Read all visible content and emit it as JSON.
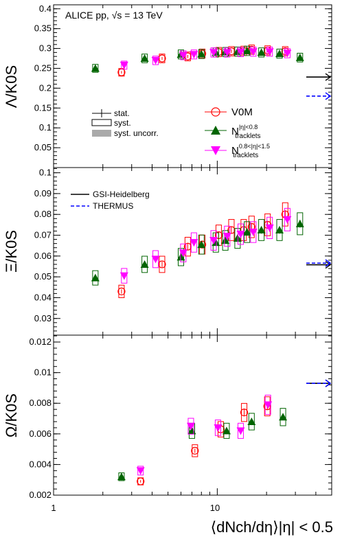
{
  "colors": {
    "V0M": "#ff0000",
    "tracklets": "#006400",
    "tracklets_outer": "#ff00ff",
    "gsi": "#000000",
    "thermus": "#0000ff"
  },
  "system_label": "ALICE pp, √s = 13 TeV",
  "xaxis": {
    "label": "⟨dNch/dη⟩|η| < 0.5",
    "ticks": [
      "1",
      "10"
    ],
    "xlim": [
      1,
      50
    ],
    "scale": "log"
  },
  "legend_markers": [
    {
      "series": "V0M",
      "label": "V0M"
    },
    {
      "series": "tracklets",
      "label": "N tracklets |η|<0.8"
    },
    {
      "series": "tracklets_outer",
      "label": "N tracklets 0.8<|η|<1.5"
    }
  ],
  "legend_models": [
    {
      "id": "gsi",
      "label": "GSI-Heidelberg"
    },
    {
      "id": "thermus",
      "label": "THERMUS"
    }
  ],
  "legend_uncert": [
    {
      "id": "stat",
      "label": "stat."
    },
    {
      "id": "syst",
      "label": "syst."
    },
    {
      "id": "uncorr",
      "label": "syst. uncorr."
    }
  ],
  "chart_data": [
    {
      "type": "scatter",
      "ylabel": "Λ/K0S",
      "ylim": [
        0.0,
        0.41
      ],
      "yticks": [
        "0.05",
        "0.1",
        "0.15",
        "0.2",
        "0.25",
        "0.3",
        "0.35",
        "0.4"
      ],
      "series": [
        {
          "name": "V0M",
          "x": [
            2.6,
            4.6,
            6.6,
            8.1,
            10.2,
            12.2,
            14.5,
            16.2,
            20.3,
            26.0
          ],
          "y": [
            0.24,
            0.275,
            0.28,
            0.287,
            0.291,
            0.293,
            0.294,
            0.297,
            0.295,
            0.293
          ]
        },
        {
          "name": "N tracklets |η|<0.8",
          "x": [
            1.8,
            3.6,
            6.0,
            8.0,
            9.8,
            11.2,
            13.3,
            15.2,
            18.6,
            24.0,
            32.0
          ],
          "y": [
            0.25,
            0.275,
            0.285,
            0.286,
            0.29,
            0.291,
            0.292,
            0.294,
            0.29,
            0.287,
            0.277
          ]
        },
        {
          "name": "N tracklets 0.8<|η|<1.5",
          "x": [
            2.7,
            4.2,
            6.2,
            7.2,
            9.5,
            11.5,
            13.9,
            16.6,
            20.9,
            26.8
          ],
          "y": [
            0.258,
            0.27,
            0.283,
            0.285,
            0.29,
            0.29,
            0.291,
            0.292,
            0.292,
            0.288
          ]
        }
      ],
      "models": [
        {
          "name": "GSI-Heidelberg",
          "y": 0.228
        },
        {
          "name": "THERMUS",
          "y": 0.18
        }
      ]
    },
    {
      "type": "scatter",
      "ylabel": "Ξ/K0S",
      "ylim": [
        0.022,
        0.1025
      ],
      "yticks": [
        "0.03",
        "0.04",
        "0.05",
        "0.06",
        "0.07",
        "0.08",
        "0.09",
        "0.1"
      ],
      "series": [
        {
          "name": "V0M",
          "x": [
            2.6,
            4.6,
            6.6,
            8.1,
            10.2,
            12.2,
            14.5,
            16.2,
            20.3,
            26.0
          ],
          "y": [
            0.043,
            0.056,
            0.0645,
            0.0655,
            0.07,
            0.0725,
            0.0725,
            0.074,
            0.075,
            0.08
          ]
        },
        {
          "name": "N tracklets |η|<0.8",
          "x": [
            1.8,
            3.6,
            6.0,
            8.0,
            9.8,
            11.2,
            13.3,
            15.2,
            18.6,
            24.0,
            32.0
          ],
          "y": [
            0.0495,
            0.056,
            0.0595,
            0.0655,
            0.0665,
            0.0675,
            0.0685,
            0.0715,
            0.0725,
            0.0725,
            0.0755
          ]
        },
        {
          "name": "N tracklets 0.8<|η|<1.5",
          "x": [
            2.7,
            4.2,
            6.2,
            7.2,
            9.5,
            11.5,
            13.9,
            16.6,
            20.9,
            26.8
          ],
          "y": [
            0.0505,
            0.0585,
            0.0615,
            0.0665,
            0.0675,
            0.0695,
            0.0705,
            0.0715,
            0.0735,
            0.0775
          ]
        }
      ],
      "models": [
        {
          "name": "GSI-Heidelberg",
          "y": 0.0558
        },
        {
          "name": "THERMUS",
          "y": 0.0566
        }
      ]
    },
    {
      "type": "scatter",
      "ylabel": "Ω/K0S",
      "xlabel": "⟨dNch/dη⟩|η| < 0.5",
      "ylim": [
        0.002,
        0.01245
      ],
      "yticks": [
        "0.002",
        "0.004",
        "0.006",
        "0.008",
        "0.01",
        "0.012"
      ],
      "series": [
        {
          "name": "V0M",
          "x": [
            3.4,
            7.3,
            10.5,
            14.6,
            20.2
          ],
          "y": [
            0.0029,
            0.0049,
            0.0063,
            0.0074,
            0.0078
          ]
        },
        {
          "name": "N tracklets |η|<0.8",
          "x": [
            2.6,
            7.0,
            11.4,
            16.2,
            25.2
          ],
          "y": [
            0.0032,
            0.0062,
            0.0062,
            0.0068,
            0.0071
          ]
        },
        {
          "name": "N tracklets 0.8<|η|<1.5",
          "x": [
            3.4,
            6.9,
            10.1,
            13.9,
            20.4
          ],
          "y": [
            0.0036,
            0.0065,
            0.0064,
            0.0062,
            0.0079
          ]
        }
      ],
      "models": [
        {
          "name": "GSI-Heidelberg",
          "y": 0.0093
        },
        {
          "name": "THERMUS",
          "y": 0.0093
        }
      ]
    }
  ]
}
